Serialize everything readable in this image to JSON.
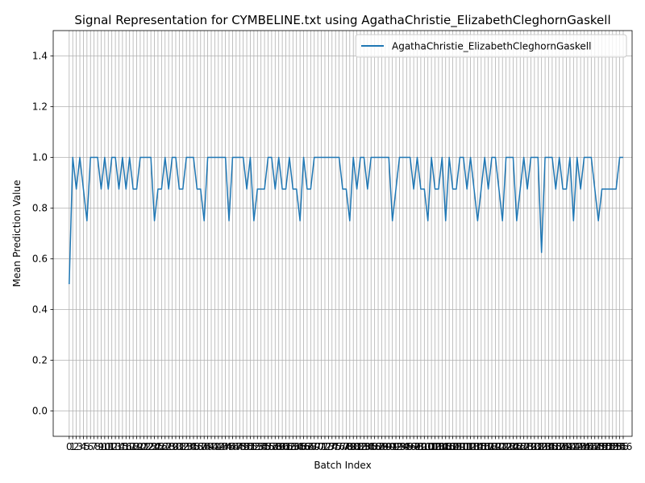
{
  "chart_data": {
    "type": "line",
    "title": "Signal Representation for CYMBELINE.txt using AgathaChristie_ElizabethCleghornGaskell",
    "xlabel": "Batch Index",
    "ylabel": "Mean Prediction Value",
    "xlim": [
      -4.5,
      158.5
    ],
    "ylim": [
      -0.1,
      1.5
    ],
    "yticks": [
      "0.0",
      "0.2",
      "0.4",
      "0.6",
      "0.8",
      "1.0",
      "1.2",
      "1.4"
    ],
    "grid": true,
    "legend_position": "top-right",
    "series": [
      {
        "name": "AgathaChristie_ElizabethCleghornGaskell",
        "color": "#1f77b4",
        "values": [
          0.5,
          1.0,
          0.875,
          1.0,
          0.875,
          0.75,
          1.0,
          1.0,
          1.0,
          0.875,
          1.0,
          0.875,
          1.0,
          1.0,
          0.875,
          1.0,
          0.875,
          1.0,
          0.875,
          0.875,
          1.0,
          1.0,
          1.0,
          1.0,
          0.75,
          0.875,
          0.875,
          1.0,
          0.875,
          1.0,
          1.0,
          0.875,
          0.875,
          1.0,
          1.0,
          1.0,
          0.875,
          0.875,
          0.75,
          1.0,
          1.0,
          1.0,
          1.0,
          1.0,
          1.0,
          0.75,
          1.0,
          1.0,
          1.0,
          1.0,
          0.875,
          1.0,
          0.75,
          0.875,
          0.875,
          0.875,
          1.0,
          1.0,
          0.875,
          1.0,
          0.875,
          0.875,
          1.0,
          0.875,
          0.875,
          0.75,
          1.0,
          0.875,
          0.875,
          1.0,
          1.0,
          1.0,
          1.0,
          1.0,
          1.0,
          1.0,
          1.0,
          0.875,
          0.875,
          0.75,
          1.0,
          0.875,
          1.0,
          1.0,
          0.875,
          1.0,
          1.0,
          1.0,
          1.0,
          1.0,
          1.0,
          0.75,
          0.875,
          1.0,
          1.0,
          1.0,
          1.0,
          0.875,
          1.0,
          0.875,
          0.875,
          0.75,
          1.0,
          0.875,
          0.875,
          1.0,
          0.75,
          1.0,
          0.875,
          0.875,
          1.0,
          1.0,
          0.875,
          1.0,
          0.875,
          0.75,
          0.875,
          1.0,
          0.875,
          1.0,
          1.0,
          0.875,
          0.75,
          1.0,
          1.0,
          1.0,
          0.75,
          0.875,
          1.0,
          0.875,
          1.0,
          1.0,
          1.0,
          0.625,
          1.0,
          1.0,
          1.0,
          0.875,
          1.0,
          0.875,
          0.875,
          1.0,
          0.75,
          1.0,
          0.875,
          1.0,
          1.0,
          1.0,
          0.875,
          0.75,
          0.875,
          0.875,
          0.875,
          0.875,
          0.875,
          1.0,
          1.0
        ]
      }
    ]
  }
}
